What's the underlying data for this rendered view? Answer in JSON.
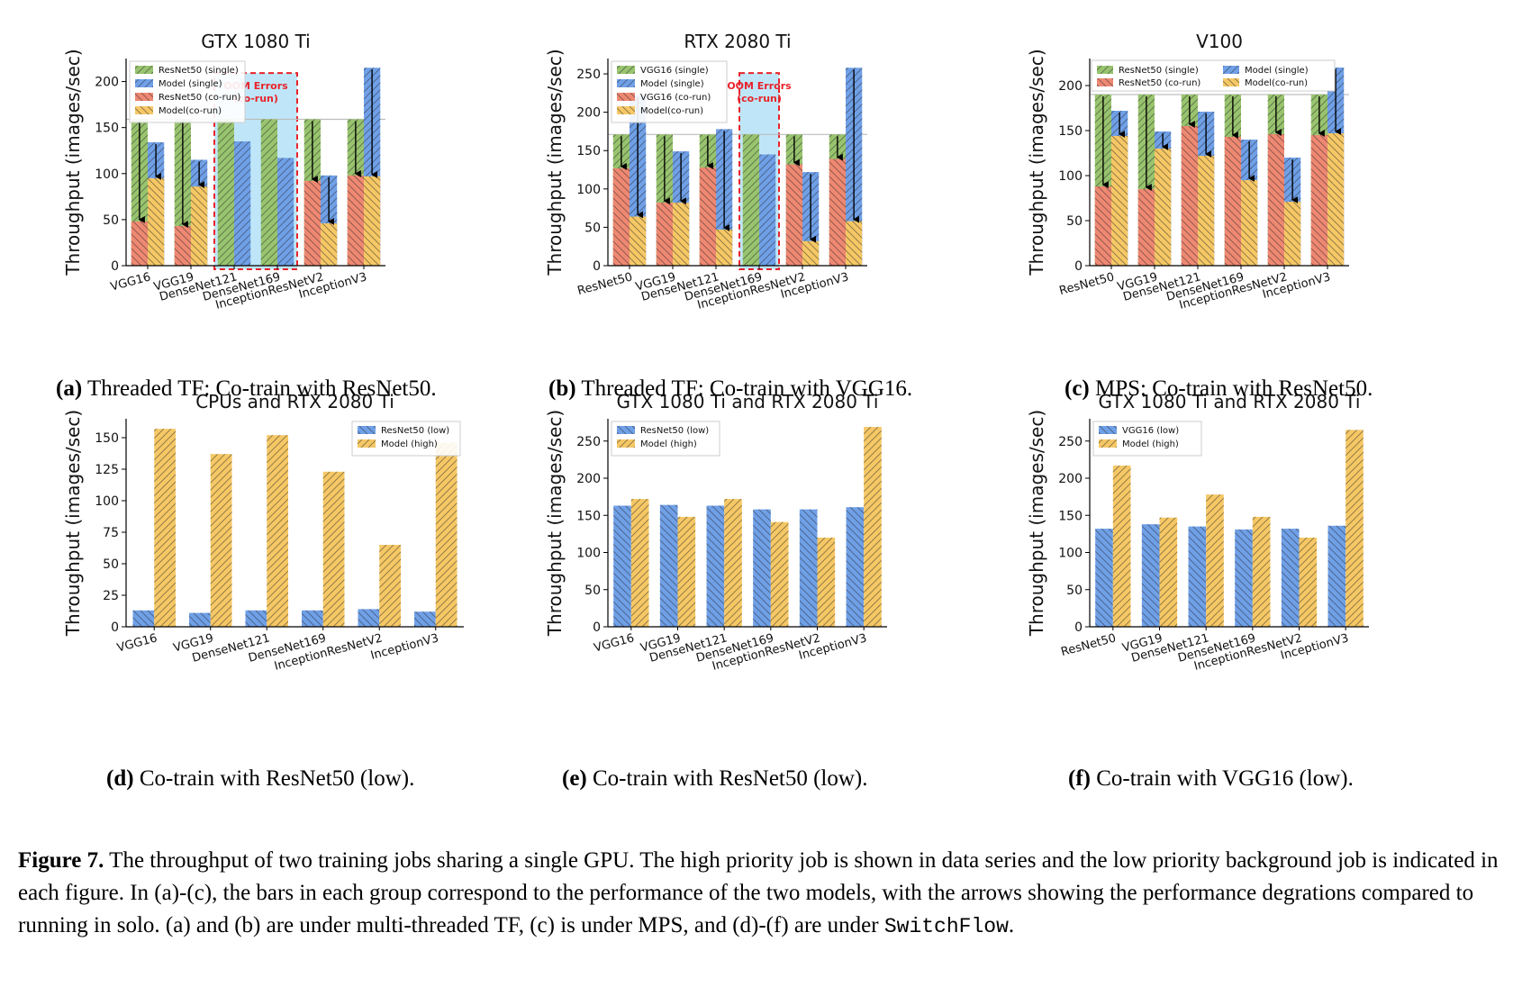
{
  "colors": {
    "green": "#98c46e",
    "green_edge": "#6b9a3f",
    "blue": "#6fa0e8",
    "blue_edge": "#3f6fc0",
    "red": "#ef8872",
    "red_edge": "#c95a45",
    "yellow": "#f6c865",
    "yellow_edge": "#c99a30",
    "oom_fill": "#bfe6f8",
    "oom_border": "#e8232b",
    "solo_line": "#bdbdbd"
  },
  "subcaptions": [
    {
      "label": "(a)",
      "text": " Threaded TF: Co-train with ResNet50."
    },
    {
      "label": "(b)",
      "text": " Threaded TF: Co-train with VGG16."
    },
    {
      "label": "(c)",
      "text": " MPS: Co-train with ResNet50."
    },
    {
      "label": "(d)",
      "text": " Co-train with ResNet50 (low)."
    },
    {
      "label": "(e)",
      "text": " Co-train with ResNet50 (low)."
    },
    {
      "label": "(f)",
      "text": " Co-train with VGG16 (low)."
    }
  ],
  "figure_caption": {
    "label": "Figure 7.",
    "text": " The throughput of two training jobs sharing a single GPU. The high priority job is shown in data series and the low priority background job is indicated in each figure. In (a)-(c), the bars in each group correspond to the performance of the two models, with the arrows showing the performance degrations compared to running in solo. (a) and (b) are under multi-threaded TF, (c) is under MPS, and (d)-(f) are under ",
    "system": "SwitchFlow",
    "end": "."
  },
  "chart_data": [
    {
      "id": "a",
      "type": "bar",
      "title": "GTX 1080 Ti",
      "ylabel": "Throughput (images/sec)",
      "ylim": [
        0,
        225
      ],
      "yticks": [
        0,
        50,
        100,
        150,
        200
      ],
      "categories": [
        "VGG16",
        "VGG19",
        "DenseNet121",
        "DenseNet169",
        "InceptionResNetV2",
        "InceptionV3"
      ],
      "solo_line": 159,
      "legend": [
        "ResNet50 (single)",
        "Model (single)",
        "ResNet50 (co-run)",
        "Model(co-run)"
      ],
      "legend_placement": "top-left",
      "series": [
        {
          "name": "ResNet50 (single)",
          "values": [
            159,
            159,
            159,
            159,
            159,
            159
          ]
        },
        {
          "name": "Model (single)",
          "values": [
            134,
            115,
            135,
            117,
            98,
            215
          ]
        },
        {
          "name": "ResNet50 (co-run)",
          "values": [
            48,
            43,
            null,
            null,
            92,
            98
          ]
        },
        {
          "name": "Model(co-run)",
          "values": [
            95,
            86,
            null,
            null,
            46,
            97
          ]
        }
      ],
      "oom": {
        "categories": [
          2,
          3
        ],
        "label1": "OOM Errors",
        "label2": "(co-run)"
      }
    },
    {
      "id": "b",
      "type": "bar",
      "title": "RTX 2080 Ti",
      "ylabel": "Throughput (images/sec)",
      "ylim": [
        0,
        270
      ],
      "yticks": [
        0,
        50,
        100,
        150,
        200,
        250
      ],
      "categories": [
        "ResNet50",
        "VGG19",
        "DenseNet121",
        "DenseNet169",
        "InceptionResNetV2",
        "InceptionV3"
      ],
      "solo_line": 171,
      "legend": [
        "VGG16 (single)",
        "Model (single)",
        "VGG16 (co-run)",
        "Model(co-run)"
      ],
      "legend_placement": "top-left",
      "series": [
        {
          "name": "VGG16 (single)",
          "values": [
            171,
            171,
            171,
            171,
            171,
            171
          ]
        },
        {
          "name": "Model (single)",
          "values": [
            222,
            149,
            178,
            145,
            122,
            258
          ]
        },
        {
          "name": "VGG16 (co-run)",
          "values": [
            127,
            82,
            128,
            null,
            132,
            139
          ]
        },
        {
          "name": "Model(co-run)",
          "values": [
            64,
            82,
            47,
            null,
            32,
            58
          ]
        }
      ],
      "oom": {
        "categories": [
          3
        ],
        "label1": "OOM Errors",
        "label2": "(co-run)"
      }
    },
    {
      "id": "c",
      "type": "bar",
      "title": "V100",
      "ylabel": "Throughput (images/sec)",
      "ylim": [
        0,
        230
      ],
      "yticks": [
        0,
        50,
        100,
        150,
        200
      ],
      "categories": [
        "ResNet50",
        "VGG19",
        "DenseNet121",
        "DenseNet169",
        "InceptionResNetV2",
        "InceptionV3"
      ],
      "solo_line": 190,
      "legend": [
        "ResNet50 (single)",
        "Model (single)",
        "ResNet50 (co-run)",
        "Model(co-run)"
      ],
      "legend_placement": "top",
      "series": [
        {
          "name": "ResNet50 (single)",
          "values": [
            190,
            190,
            190,
            190,
            190,
            190
          ]
        },
        {
          "name": "Model (single)",
          "values": [
            172,
            149,
            171,
            140,
            120,
            220
          ]
        },
        {
          "name": "ResNet50 (co-run)",
          "values": [
            88,
            85,
            155,
            143,
            146,
            145
          ]
        },
        {
          "name": "Model(co-run)",
          "values": [
            144,
            130,
            122,
            95,
            71,
            147
          ]
        }
      ]
    },
    {
      "id": "d",
      "type": "bar",
      "title": "CPUs and RTX 2080 Ti",
      "ylabel": "Throughput (images/sec)",
      "ylim": [
        0,
        165
      ],
      "yticks": [
        0,
        25,
        50,
        75,
        100,
        125,
        150
      ],
      "categories": [
        "VGG16",
        "VGG19",
        "DenseNet121",
        "DenseNet169",
        "InceptionResNetV2",
        "InceptionV3"
      ],
      "legend": [
        "ResNet50 (low)",
        "Model (high)"
      ],
      "legend_placement": "top-right",
      "series": [
        {
          "name": "ResNet50 (low)",
          "values": [
            13,
            11,
            13,
            13,
            14,
            12
          ]
        },
        {
          "name": "Model (high)",
          "values": [
            157,
            137,
            152,
            123,
            65,
            146
          ]
        }
      ]
    },
    {
      "id": "e",
      "type": "bar",
      "title": "GTX 1080 Ti and RTX 2080 Ti",
      "ylabel": "Throughput (images/sec)",
      "ylim": [
        0,
        280
      ],
      "yticks": [
        0,
        50,
        100,
        150,
        200,
        250
      ],
      "categories": [
        "VGG16",
        "VGG19",
        "DenseNet121",
        "DenseNet169",
        "InceptionResNetV2",
        "InceptionV3"
      ],
      "legend": [
        "ResNet50 (low)",
        "Model (high)"
      ],
      "legend_placement": "top-left",
      "series": [
        {
          "name": "ResNet50 (low)",
          "values": [
            163,
            164,
            163,
            158,
            158,
            161
          ]
        },
        {
          "name": "Model (high)",
          "values": [
            172,
            148,
            172,
            141,
            120,
            269
          ]
        }
      ]
    },
    {
      "id": "f",
      "type": "bar",
      "title": "GTX 1080 Ti and RTX 2080 Ti",
      "ylabel": "Throughput (images/sec)",
      "ylim": [
        0,
        280
      ],
      "yticks": [
        0,
        50,
        100,
        150,
        200,
        250
      ],
      "categories": [
        "ResNet50",
        "VGG19",
        "DenseNet121",
        "DenseNet169",
        "InceptionResNetV2",
        "InceptionV3"
      ],
      "legend": [
        "VGG16 (low)",
        "Model (high)"
      ],
      "legend_placement": "top-left",
      "series": [
        {
          "name": "VGG16 (low)",
          "values": [
            132,
            138,
            135,
            131,
            132,
            136
          ]
        },
        {
          "name": "Model (high)",
          "values": [
            217,
            147,
            178,
            148,
            120,
            265
          ]
        }
      ]
    }
  ]
}
